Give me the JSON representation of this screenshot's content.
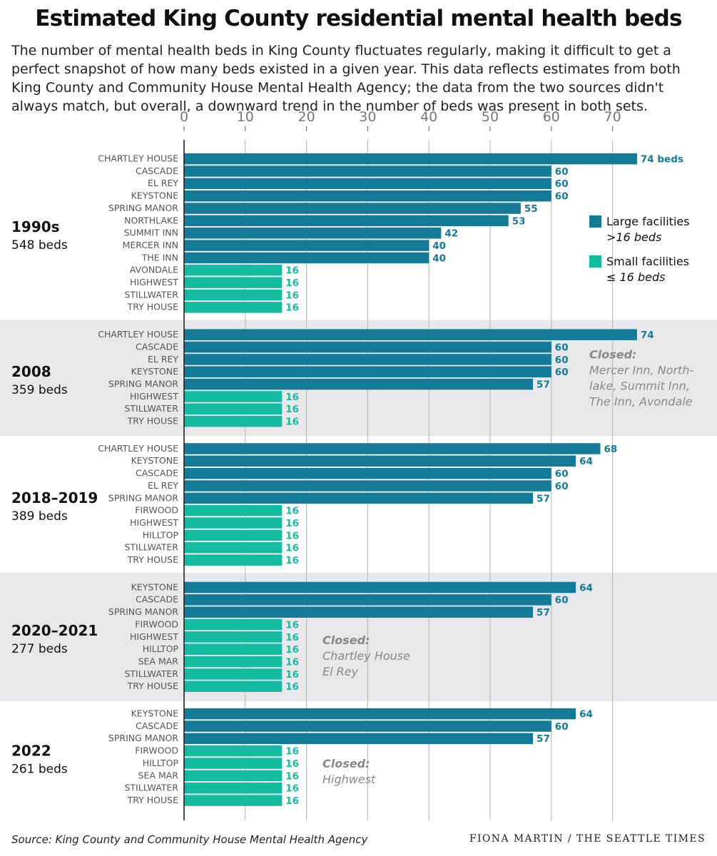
{
  "title": "Estimated King County residential mental health beds",
  "subtitle": "The number of mental health beds in King County fluctuates regularly, making it difficult to get a perfect snapshot of how many beds existed in a given year. This data reflects estimates from both King County and Community House Mental Health Agency; the data from the two sources didn't always match, but overall, a downward trend in the number of beds was present in both sets.",
  "source": "Source: King County and Community House Mental Health Agency",
  "credit": "FIONA MARTIN / THE SEATTLE TIMES",
  "colors": {
    "large": "#137a98",
    "small": "#13bba0",
    "band": "#e8e8ea",
    "grid": "#bdbdbd",
    "label": "#555555",
    "note": "#888888"
  },
  "chart_data": {
    "type": "bar",
    "orientation": "horizontal",
    "xlim": [
      0,
      75
    ],
    "ticks": [
      0,
      10,
      20,
      30,
      40,
      50,
      60,
      70
    ],
    "legend": {
      "position": "right",
      "items": [
        {
          "key": "large",
          "label": "Large facilities",
          "sublabel": ">16 beds"
        },
        {
          "key": "small",
          "label": "Small facilities",
          "sublabel": "≤ 16 beds"
        }
      ]
    },
    "groups": [
      {
        "period": "1990s",
        "total": "548 beds",
        "shaded": false,
        "note_title": "",
        "note_lines": [],
        "bars": [
          {
            "name": "CHARTLEY HOUSE",
            "value": 74,
            "size": "large",
            "label": "74 beds"
          },
          {
            "name": "CASCADE",
            "value": 60,
            "size": "large",
            "label": "60"
          },
          {
            "name": "EL REY",
            "value": 60,
            "size": "large",
            "label": "60"
          },
          {
            "name": "KEYSTONE",
            "value": 60,
            "size": "large",
            "label": "60"
          },
          {
            "name": "SPRING MANOR",
            "value": 55,
            "size": "large",
            "label": "55"
          },
          {
            "name": "NORTHLAKE",
            "value": 53,
            "size": "large",
            "label": "53"
          },
          {
            "name": "SUMMIT INN",
            "value": 42,
            "size": "large",
            "label": "42"
          },
          {
            "name": "MERCER INN",
            "value": 40,
            "size": "large",
            "label": "40"
          },
          {
            "name": "THE INN",
            "value": 40,
            "size": "large",
            "label": "40"
          },
          {
            "name": "AVONDALE",
            "value": 16,
            "size": "small",
            "label": "16"
          },
          {
            "name": "HIGHWEST",
            "value": 16,
            "size": "small",
            "label": "16"
          },
          {
            "name": "STILLWATER",
            "value": 16,
            "size": "small",
            "label": "16"
          },
          {
            "name": "TRY HOUSE",
            "value": 16,
            "size": "small",
            "label": "16"
          }
        ]
      },
      {
        "period": "2008",
        "total": "359 beds",
        "shaded": true,
        "note_title": "Closed:",
        "note_lines": [
          "Mercer Inn, North-",
          "lake, Summit Inn,",
          "The Inn, Avondale"
        ],
        "bars": [
          {
            "name": "CHARTLEY HOUSE",
            "value": 74,
            "size": "large",
            "label": "74"
          },
          {
            "name": "CASCADE",
            "value": 60,
            "size": "large",
            "label": "60"
          },
          {
            "name": "EL REY",
            "value": 60,
            "size": "large",
            "label": "60"
          },
          {
            "name": "KEYSTONE",
            "value": 60,
            "size": "large",
            "label": "60"
          },
          {
            "name": "SPRING MANOR",
            "value": 57,
            "size": "large",
            "label": "57"
          },
          {
            "name": "HIGHWEST",
            "value": 16,
            "size": "small",
            "label": "16"
          },
          {
            "name": "STILLWATER",
            "value": 16,
            "size": "small",
            "label": "16"
          },
          {
            "name": "TRY HOUSE",
            "value": 16,
            "size": "small",
            "label": "16"
          }
        ]
      },
      {
        "period": "2018–2019",
        "total": "389 beds",
        "shaded": false,
        "note_title": "",
        "note_lines": [],
        "bars": [
          {
            "name": "CHARTLEY HOUSE",
            "value": 68,
            "size": "large",
            "label": "68"
          },
          {
            "name": "KEYSTONE",
            "value": 64,
            "size": "large",
            "label": "64"
          },
          {
            "name": "CASCADE",
            "value": 60,
            "size": "large",
            "label": "60"
          },
          {
            "name": "EL REY",
            "value": 60,
            "size": "large",
            "label": "60"
          },
          {
            "name": "SPRING MANOR",
            "value": 57,
            "size": "large",
            "label": "57"
          },
          {
            "name": "FIRWOOD",
            "value": 16,
            "size": "small",
            "label": "16"
          },
          {
            "name": "HIGHWEST",
            "value": 16,
            "size": "small",
            "label": "16"
          },
          {
            "name": "HILLTOP",
            "value": 16,
            "size": "small",
            "label": "16"
          },
          {
            "name": "STILLWATER",
            "value": 16,
            "size": "small",
            "label": "16"
          },
          {
            "name": "TRY HOUSE",
            "value": 16,
            "size": "small",
            "label": "16"
          }
        ]
      },
      {
        "period": "2020–2021",
        "total": "277 beds",
        "shaded": true,
        "note_title": "Closed:",
        "note_lines": [
          "Chartley House",
          "El Rey"
        ],
        "bars": [
          {
            "name": "KEYSTONE",
            "value": 64,
            "size": "large",
            "label": "64"
          },
          {
            "name": "CASCADE",
            "value": 60,
            "size": "large",
            "label": "60"
          },
          {
            "name": "SPRING MANOR",
            "value": 57,
            "size": "large",
            "label": "57"
          },
          {
            "name": "FIRWOOD",
            "value": 16,
            "size": "small",
            "label": "16"
          },
          {
            "name": "HIGHWEST",
            "value": 16,
            "size": "small",
            "label": "16"
          },
          {
            "name": "HILLTOP",
            "value": 16,
            "size": "small",
            "label": "16"
          },
          {
            "name": "SEA MAR",
            "value": 16,
            "size": "small",
            "label": "16"
          },
          {
            "name": "STILLWATER",
            "value": 16,
            "size": "small",
            "label": "16"
          },
          {
            "name": "TRY HOUSE",
            "value": 16,
            "size": "small",
            "label": "16"
          }
        ]
      },
      {
        "period": "2022",
        "total": "261 beds",
        "shaded": false,
        "note_title": "Closed:",
        "note_lines": [
          "Highwest"
        ],
        "bars": [
          {
            "name": "KEYSTONE",
            "value": 64,
            "size": "large",
            "label": "64"
          },
          {
            "name": "CASCADE",
            "value": 60,
            "size": "large",
            "label": "60"
          },
          {
            "name": "SPRING MANOR",
            "value": 57,
            "size": "large",
            "label": "57"
          },
          {
            "name": "FIRWOOD",
            "value": 16,
            "size": "small",
            "label": "16"
          },
          {
            "name": "HILLTOP",
            "value": 16,
            "size": "small",
            "label": "16"
          },
          {
            "name": "SEA MAR",
            "value": 16,
            "size": "small",
            "label": "16"
          },
          {
            "name": "STILLWATER",
            "value": 16,
            "size": "small",
            "label": "16"
          },
          {
            "name": "TRY HOUSE",
            "value": 16,
            "size": "small",
            "label": "16"
          }
        ]
      }
    ]
  }
}
